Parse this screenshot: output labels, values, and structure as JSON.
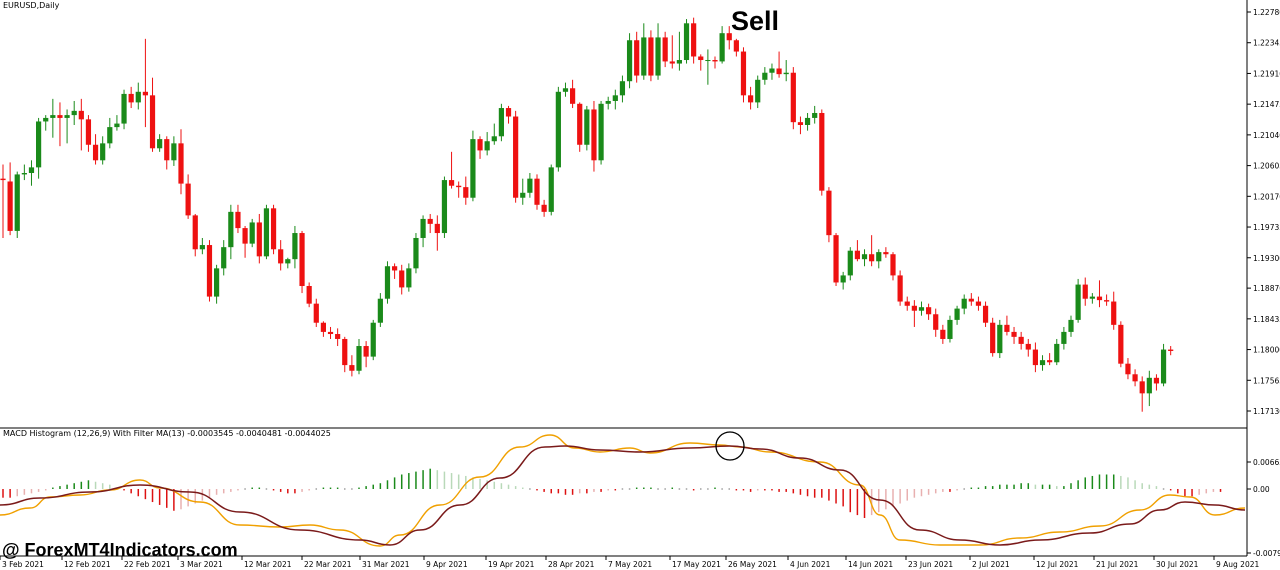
{
  "main_chart": {
    "title": "EURUSD,Daily",
    "annotation": "Sell",
    "price_labels": [
      "1.22780",
      "1.22345",
      "1.21910",
      "1.21475",
      "1.21040",
      "1.20605",
      "1.20170",
      "1.19735",
      "1.19300",
      "1.18870",
      "1.18435",
      "1.18000",
      "1.17565",
      "1.17130"
    ],
    "ohlc": [
      {
        "o": 1.2042,
        "h": 1.2062,
        "l": 1.1958,
        "c": 1.204
      },
      {
        "o": 1.2038,
        "h": 1.2065,
        "l": 1.1962,
        "c": 1.1968
      },
      {
        "o": 1.1968,
        "h": 1.2052,
        "l": 1.1958,
        "c": 1.2048
      },
      {
        "o": 1.2048,
        "h": 1.2062,
        "l": 1.204,
        "c": 1.205
      },
      {
        "o": 1.205,
        "h": 1.2068,
        "l": 1.2032,
        "c": 1.2058
      },
      {
        "o": 1.2058,
        "h": 1.2128,
        "l": 1.2042,
        "c": 1.2123
      },
      {
        "o": 1.2123,
        "h": 1.2132,
        "l": 1.211,
        "c": 1.2128
      },
      {
        "o": 1.2128,
        "h": 1.2155,
        "l": 1.21,
        "c": 1.2132
      },
      {
        "o": 1.2132,
        "h": 1.215,
        "l": 1.2088,
        "c": 1.2128
      },
      {
        "o": 1.2128,
        "h": 1.214,
        "l": 1.2092,
        "c": 1.2132
      },
      {
        "o": 1.2132,
        "h": 1.2152,
        "l": 1.2118,
        "c": 1.2138
      },
      {
        "o": 1.2138,
        "h": 1.2155,
        "l": 1.2082,
        "c": 1.2126
      },
      {
        "o": 1.2126,
        "h": 1.2132,
        "l": 1.208,
        "c": 1.209
      },
      {
        "o": 1.209,
        "h": 1.2105,
        "l": 1.2062,
        "c": 1.2068
      },
      {
        "o": 1.2068,
        "h": 1.2102,
        "l": 1.2062,
        "c": 1.2092
      },
      {
        "o": 1.2092,
        "h": 1.2128,
        "l": 1.2085,
        "c": 1.2115
      },
      {
        "o": 1.2115,
        "h": 1.2132,
        "l": 1.211,
        "c": 1.212
      },
      {
        "o": 1.212,
        "h": 1.2168,
        "l": 1.2112,
        "c": 1.2162
      },
      {
        "o": 1.2162,
        "h": 1.2172,
        "l": 1.2142,
        "c": 1.215
      },
      {
        "o": 1.215,
        "h": 1.2178,
        "l": 1.214,
        "c": 1.2165
      },
      {
        "o": 1.2165,
        "h": 1.224,
        "l": 1.2115,
        "c": 1.216
      },
      {
        "o": 1.216,
        "h": 1.2185,
        "l": 1.208,
        "c": 1.2085
      },
      {
        "o": 1.2085,
        "h": 1.2105,
        "l": 1.208,
        "c": 1.2098
      },
      {
        "o": 1.2098,
        "h": 1.2102,
        "l": 1.2055,
        "c": 1.2068
      },
      {
        "o": 1.2068,
        "h": 1.2102,
        "l": 1.206,
        "c": 1.2092
      },
      {
        "o": 1.2092,
        "h": 1.2112,
        "l": 1.202,
        "c": 1.2035
      },
      {
        "o": 1.2035,
        "h": 1.2048,
        "l": 1.1985,
        "c": 1.199
      },
      {
        "o": 1.199,
        "h": 1.1992,
        "l": 1.1932,
        "c": 1.1942
      },
      {
        "o": 1.1942,
        "h": 1.1958,
        "l": 1.1935,
        "c": 1.1948
      },
      {
        "o": 1.1948,
        "h": 1.1955,
        "l": 1.1868,
        "c": 1.1875
      },
      {
        "o": 1.1875,
        "h": 1.192,
        "l": 1.1865,
        "c": 1.1915
      },
      {
        "o": 1.1915,
        "h": 1.1955,
        "l": 1.1905,
        "c": 1.1945
      },
      {
        "o": 1.1945,
        "h": 1.2005,
        "l": 1.1928,
        "c": 1.1995
      },
      {
        "o": 1.1995,
        "h": 1.2005,
        "l": 1.1965,
        "c": 1.1972
      },
      {
        "o": 1.1972,
        "h": 1.1975,
        "l": 1.193,
        "c": 1.195
      },
      {
        "o": 1.195,
        "h": 1.1985,
        "l": 1.1945,
        "c": 1.198
      },
      {
        "o": 1.198,
        "h": 1.1992,
        "l": 1.1922,
        "c": 1.1932
      },
      {
        "o": 1.1932,
        "h": 1.2005,
        "l": 1.1928,
        "c": 1.2
      },
      {
        "o": 1.2,
        "h": 1.2005,
        "l": 1.1935,
        "c": 1.1942
      },
      {
        "o": 1.1942,
        "h": 1.1955,
        "l": 1.1912,
        "c": 1.1922
      },
      {
        "o": 1.1922,
        "h": 1.193,
        "l": 1.1915,
        "c": 1.1928
      },
      {
        "o": 1.1928,
        "h": 1.1975,
        "l": 1.1915,
        "c": 1.1965
      },
      {
        "o": 1.1965,
        "h": 1.1968,
        "l": 1.188,
        "c": 1.189
      },
      {
        "o": 1.189,
        "h": 1.1895,
        "l": 1.186,
        "c": 1.1865
      },
      {
        "o": 1.1865,
        "h": 1.1872,
        "l": 1.1832,
        "c": 1.1838
      },
      {
        "o": 1.1838,
        "h": 1.184,
        "l": 1.1818,
        "c": 1.1825
      },
      {
        "o": 1.1825,
        "h": 1.1832,
        "l": 1.1815,
        "c": 1.1822
      },
      {
        "o": 1.1822,
        "h": 1.183,
        "l": 1.1805,
        "c": 1.1815
      },
      {
        "o": 1.1815,
        "h": 1.1818,
        "l": 1.1768,
        "c": 1.1778
      },
      {
        "o": 1.1778,
        "h": 1.1792,
        "l": 1.1762,
        "c": 1.177
      },
      {
        "o": 1.177,
        "h": 1.1815,
        "l": 1.1765,
        "c": 1.1805
      },
      {
        "o": 1.1805,
        "h": 1.1812,
        "l": 1.1775,
        "c": 1.179
      },
      {
        "o": 1.179,
        "h": 1.1842,
        "l": 1.1785,
        "c": 1.1838
      },
      {
        "o": 1.1838,
        "h": 1.188,
        "l": 1.1832,
        "c": 1.1872
      },
      {
        "o": 1.1872,
        "h": 1.1925,
        "l": 1.1865,
        "c": 1.1918
      },
      {
        "o": 1.1918,
        "h": 1.1922,
        "l": 1.19,
        "c": 1.1912
      },
      {
        "o": 1.1912,
        "h": 1.192,
        "l": 1.1878,
        "c": 1.1888
      },
      {
        "o": 1.1888,
        "h": 1.1922,
        "l": 1.1882,
        "c": 1.1915
      },
      {
        "o": 1.1915,
        "h": 1.1965,
        "l": 1.1908,
        "c": 1.1958
      },
      {
        "o": 1.1958,
        "h": 1.199,
        "l": 1.1945,
        "c": 1.1985
      },
      {
        "o": 1.1985,
        "h": 1.1992,
        "l": 1.1965,
        "c": 1.1978
      },
      {
        "o": 1.1978,
        "h": 1.199,
        "l": 1.194,
        "c": 1.1965
      },
      {
        "o": 1.1965,
        "h": 1.2045,
        "l": 1.1958,
        "c": 1.204
      },
      {
        "o": 1.204,
        "h": 1.208,
        "l": 1.2028,
        "c": 1.2032
      },
      {
        "o": 1.2032,
        "h": 1.2038,
        "l": 1.2015,
        "c": 1.203
      },
      {
        "o": 1.203,
        "h": 1.2045,
        "l": 1.2005,
        "c": 1.2015
      },
      {
        "o": 1.2015,
        "h": 1.211,
        "l": 1.201,
        "c": 1.2098
      },
      {
        "o": 1.2098,
        "h": 1.2102,
        "l": 1.207,
        "c": 1.2082
      },
      {
        "o": 1.2082,
        "h": 1.2108,
        "l": 1.2075,
        "c": 1.2095
      },
      {
        "o": 1.2095,
        "h": 1.212,
        "l": 1.209,
        "c": 1.2102
      },
      {
        "o": 1.2102,
        "h": 1.2148,
        "l": 1.2095,
        "c": 1.2142
      },
      {
        "o": 1.2142,
        "h": 1.2145,
        "l": 1.212,
        "c": 1.213
      },
      {
        "o": 1.213,
        "h": 1.2138,
        "l": 1.2008,
        "c": 1.2015
      },
      {
        "o": 1.2015,
        "h": 1.2042,
        "l": 1.2005,
        "c": 1.2022
      },
      {
        "o": 1.2022,
        "h": 1.205,
        "l": 1.2015,
        "c": 1.2042
      },
      {
        "o": 1.2042,
        "h": 1.2048,
        "l": 1.1998,
        "c": 1.2005
      },
      {
        "o": 1.2005,
        "h": 1.2012,
        "l": 1.1988,
        "c": 1.1995
      },
      {
        "o": 1.1995,
        "h": 1.2062,
        "l": 1.199,
        "c": 1.2058
      },
      {
        "o": 1.2058,
        "h": 1.2172,
        "l": 1.2052,
        "c": 1.2165
      },
      {
        "o": 1.2165,
        "h": 1.2178,
        "l": 1.2158,
        "c": 1.217
      },
      {
        "o": 1.217,
        "h": 1.2182,
        "l": 1.2142,
        "c": 1.2148
      },
      {
        "o": 1.2148,
        "h": 1.215,
        "l": 1.208,
        "c": 1.209
      },
      {
        "o": 1.209,
        "h": 1.2145,
        "l": 1.2082,
        "c": 1.214
      },
      {
        "o": 1.214,
        "h": 1.2152,
        "l": 1.2052,
        "c": 1.2068
      },
      {
        "o": 1.2068,
        "h": 1.2152,
        "l": 1.2062,
        "c": 1.2148
      },
      {
        "o": 1.2148,
        "h": 1.2158,
        "l": 1.214,
        "c": 1.2152
      },
      {
        "o": 1.2152,
        "h": 1.2168,
        "l": 1.214,
        "c": 1.216
      },
      {
        "o": 1.216,
        "h": 1.2188,
        "l": 1.215,
        "c": 1.218
      },
      {
        "o": 1.218,
        "h": 1.2248,
        "l": 1.217,
        "c": 1.2238
      },
      {
        "o": 1.2238,
        "h": 1.225,
        "l": 1.2178,
        "c": 1.2188
      },
      {
        "o": 1.2188,
        "h": 1.2262,
        "l": 1.2182,
        "c": 1.2242
      },
      {
        "o": 1.2242,
        "h": 1.2252,
        "l": 1.218,
        "c": 1.2188
      },
      {
        "o": 1.2188,
        "h": 1.2262,
        "l": 1.2182,
        "c": 1.2242
      },
      {
        "o": 1.2242,
        "h": 1.225,
        "l": 1.22,
        "c": 1.2208
      },
      {
        "o": 1.2208,
        "h": 1.2245,
        "l": 1.2198,
        "c": 1.2205
      },
      {
        "o": 1.2205,
        "h": 1.225,
        "l": 1.2195,
        "c": 1.221
      },
      {
        "o": 1.221,
        "h": 1.2268,
        "l": 1.2205,
        "c": 1.2262
      },
      {
        "o": 1.2262,
        "h": 1.227,
        "l": 1.2205,
        "c": 1.2215
      },
      {
        "o": 1.2215,
        "h": 1.2218,
        "l": 1.2195,
        "c": 1.221
      },
      {
        "o": 1.221,
        "h": 1.2225,
        "l": 1.2175,
        "c": 1.221
      },
      {
        "o": 1.221,
        "h": 1.2215,
        "l": 1.2198,
        "c": 1.2208
      },
      {
        "o": 1.2208,
        "h": 1.2258,
        "l": 1.2205,
        "c": 1.2248
      },
      {
        "o": 1.2248,
        "h": 1.2258,
        "l": 1.2225,
        "c": 1.2238
      },
      {
        "o": 1.2238,
        "h": 1.224,
        "l": 1.2215,
        "c": 1.2222
      },
      {
        "o": 1.2222,
        "h": 1.2228,
        "l": 1.215,
        "c": 1.216
      },
      {
        "o": 1.216,
        "h": 1.2172,
        "l": 1.214,
        "c": 1.215
      },
      {
        "o": 1.215,
        "h": 1.2188,
        "l": 1.2142,
        "c": 1.2182
      },
      {
        "o": 1.2182,
        "h": 1.22,
        "l": 1.2175,
        "c": 1.2192
      },
      {
        "o": 1.2192,
        "h": 1.2205,
        "l": 1.2182,
        "c": 1.2198
      },
      {
        "o": 1.2198,
        "h": 1.2222,
        "l": 1.2185,
        "c": 1.219
      },
      {
        "o": 1.219,
        "h": 1.221,
        "l": 1.218,
        "c": 1.2192
      },
      {
        "o": 1.2192,
        "h": 1.22,
        "l": 1.2112,
        "c": 1.2122
      },
      {
        "o": 1.2122,
        "h": 1.213,
        "l": 1.2105,
        "c": 1.2118
      },
      {
        "o": 1.2118,
        "h": 1.2135,
        "l": 1.211,
        "c": 1.2128
      },
      {
        "o": 1.2128,
        "h": 1.2145,
        "l": 1.212,
        "c": 1.2135
      },
      {
        "o": 1.2135,
        "h": 1.214,
        "l": 1.2018,
        "c": 1.2025
      },
      {
        "o": 1.2025,
        "h": 1.203,
        "l": 1.1952,
        "c": 1.1962
      },
      {
        "o": 1.1962,
        "h": 1.1965,
        "l": 1.189,
        "c": 1.1895
      },
      {
        "o": 1.1895,
        "h": 1.191,
        "l": 1.1885,
        "c": 1.1905
      },
      {
        "o": 1.1905,
        "h": 1.1945,
        "l": 1.1898,
        "c": 1.194
      },
      {
        "o": 1.194,
        "h": 1.1955,
        "l": 1.1925,
        "c": 1.1928
      },
      {
        "o": 1.1928,
        "h": 1.1942,
        "l": 1.1918,
        "c": 1.1935
      },
      {
        "o": 1.1935,
        "h": 1.1962,
        "l": 1.1918,
        "c": 1.1925
      },
      {
        "o": 1.1925,
        "h": 1.1942,
        "l": 1.1915,
        "c": 1.1938
      },
      {
        "o": 1.1938,
        "h": 1.1945,
        "l": 1.193,
        "c": 1.1935
      },
      {
        "o": 1.1935,
        "h": 1.1938,
        "l": 1.1898,
        "c": 1.1905
      },
      {
        "o": 1.1905,
        "h": 1.1912,
        "l": 1.1862,
        "c": 1.1868
      },
      {
        "o": 1.1868,
        "h": 1.1875,
        "l": 1.1855,
        "c": 1.1862
      },
      {
        "o": 1.1862,
        "h": 1.187,
        "l": 1.1832,
        "c": 1.1855
      },
      {
        "o": 1.1855,
        "h": 1.1868,
        "l": 1.1848,
        "c": 1.186
      },
      {
        "o": 1.186,
        "h": 1.1865,
        "l": 1.1842,
        "c": 1.185
      },
      {
        "o": 1.185,
        "h": 1.1858,
        "l": 1.1818,
        "c": 1.1828
      },
      {
        "o": 1.1828,
        "h": 1.1835,
        "l": 1.1808,
        "c": 1.1815
      },
      {
        "o": 1.1815,
        "h": 1.1848,
        "l": 1.181,
        "c": 1.1842
      },
      {
        "o": 1.1842,
        "h": 1.1862,
        "l": 1.1835,
        "c": 1.1858
      },
      {
        "o": 1.1858,
        "h": 1.1878,
        "l": 1.185,
        "c": 1.1872
      },
      {
        "o": 1.1872,
        "h": 1.188,
        "l": 1.1862,
        "c": 1.1868
      },
      {
        "o": 1.1868,
        "h": 1.1875,
        "l": 1.1855,
        "c": 1.1862
      },
      {
        "o": 1.1862,
        "h": 1.1868,
        "l": 1.1832,
        "c": 1.1838
      },
      {
        "o": 1.1838,
        "h": 1.1845,
        "l": 1.179,
        "c": 1.1795
      },
      {
        "o": 1.1795,
        "h": 1.1842,
        "l": 1.1788,
        "c": 1.1835
      },
      {
        "o": 1.1835,
        "h": 1.1848,
        "l": 1.182,
        "c": 1.1825
      },
      {
        "o": 1.1825,
        "h": 1.1832,
        "l": 1.1808,
        "c": 1.1818
      },
      {
        "o": 1.1818,
        "h": 1.1825,
        "l": 1.18,
        "c": 1.1808
      },
      {
        "o": 1.1808,
        "h": 1.1815,
        "l": 1.179,
        "c": 1.18
      },
      {
        "o": 1.18,
        "h": 1.181,
        "l": 1.1768,
        "c": 1.1778
      },
      {
        "o": 1.1778,
        "h": 1.1792,
        "l": 1.177,
        "c": 1.1785
      },
      {
        "o": 1.1785,
        "h": 1.1795,
        "l": 1.1778,
        "c": 1.1782
      },
      {
        "o": 1.1782,
        "h": 1.1815,
        "l": 1.1778,
        "c": 1.1808
      },
      {
        "o": 1.1808,
        "h": 1.1832,
        "l": 1.18,
        "c": 1.1825
      },
      {
        "o": 1.1825,
        "h": 1.1848,
        "l": 1.1818,
        "c": 1.1842
      },
      {
        "o": 1.1842,
        "h": 1.19,
        "l": 1.1838,
        "c": 1.1892
      },
      {
        "o": 1.1892,
        "h": 1.1902,
        "l": 1.1862,
        "c": 1.1872
      },
      {
        "o": 1.1872,
        "h": 1.188,
        "l": 1.1865,
        "c": 1.1875
      },
      {
        "o": 1.1875,
        "h": 1.1898,
        "l": 1.186,
        "c": 1.187
      },
      {
        "o": 1.187,
        "h": 1.1878,
        "l": 1.1862,
        "c": 1.1868
      },
      {
        "o": 1.1868,
        "h": 1.1882,
        "l": 1.1828,
        "c": 1.1835
      },
      {
        "o": 1.1835,
        "h": 1.184,
        "l": 1.1775,
        "c": 1.178
      },
      {
        "o": 1.178,
        "h": 1.1788,
        "l": 1.1758,
        "c": 1.1765
      },
      {
        "o": 1.1765,
        "h": 1.1772,
        "l": 1.1748,
        "c": 1.1755
      },
      {
        "o": 1.1755,
        "h": 1.1762,
        "l": 1.1712,
        "c": 1.1738
      },
      {
        "o": 1.1738,
        "h": 1.177,
        "l": 1.172,
        "c": 1.176
      },
      {
        "o": 1.176,
        "h": 1.1765,
        "l": 1.1742,
        "c": 1.1752
      },
      {
        "o": 1.1752,
        "h": 1.1808,
        "l": 1.1748,
        "c": 1.18
      },
      {
        "o": 1.18,
        "h": 1.1805,
        "l": 1.1792,
        "c": 1.1798
      }
    ]
  },
  "indicator": {
    "title": "MACD Histogram (12,26,9) With Filter MA(13) -0.0003545 -0.0040481 -0.0044025",
    "labels": [
      "0.006635",
      "0.00",
      "-0.007920"
    ],
    "histogram": [
      -6,
      -6,
      -5,
      -4,
      -3,
      -2,
      -1,
      1,
      2,
      3,
      4,
      5,
      6,
      5,
      4,
      3,
      1,
      -1,
      -3,
      -5,
      -7,
      -9,
      -11,
      -13,
      -15,
      -14,
      -12,
      -10,
      -8,
      -6,
      -4,
      -3,
      -2,
      -1,
      0,
      1,
      1,
      0,
      -1,
      -2,
      -3,
      -3,
      -2,
      -1,
      0,
      1,
      1,
      1,
      0,
      0,
      1,
      2,
      3,
      4,
      6,
      8,
      10,
      11,
      12,
      13,
      14,
      13,
      12,
      11,
      10,
      9,
      8,
      7,
      6,
      5,
      4,
      3,
      2,
      1,
      0,
      -1,
      -2,
      -3,
      -3,
      -4,
      -4,
      -3,
      -3,
      -2,
      -2,
      -1,
      -1,
      0,
      0,
      1,
      1,
      1,
      0,
      0,
      1,
      0,
      0,
      -1,
      0,
      0,
      1,
      0,
      0,
      -1,
      -1,
      -2,
      -1,
      -1,
      -1,
      -2,
      -2,
      -3,
      -4,
      -5,
      -6,
      -6,
      -8,
      -10,
      -12,
      -16,
      -18,
      -20,
      -18,
      -16,
      -14,
      -12,
      -10,
      -8,
      -6,
      -5,
      -4,
      -3,
      -2,
      -2,
      -1,
      0,
      1,
      1,
      2,
      2,
      3,
      3,
      3,
      4,
      4,
      3,
      3,
      3,
      2,
      2,
      4,
      6,
      8,
      9,
      10,
      10,
      10,
      9,
      8,
      6,
      4,
      3,
      2,
      0,
      -1,
      -3,
      -5,
      -5,
      -4,
      -3,
      -2,
      -2
    ],
    "macd_line_color": "#7a1a1a",
    "signal_line_color": "#f0a000"
  },
  "x_labels": [
    "3 Feb 2021",
    "12 Feb 2021",
    "22 Feb 2021",
    "3 Mar 2021",
    "12 Mar 2021",
    "22 Mar 2021",
    "31 Mar 2021",
    "9 Apr 2021",
    "19 Apr 2021",
    "28 Apr 2021",
    "7 May 2021",
    "17 May 2021",
    "26 May 2021",
    "4 Jun 2021",
    "14 Jun 2021",
    "23 Jun 2021",
    "2 Jul 2021",
    "12 Jul 2021",
    "21 Jul 2021",
    "30 Jul 2021",
    "9 Aug 2021"
  ],
  "watermark": "@ ForexMT4Indicators.com",
  "colors": {
    "bull": "#1a8a1a",
    "bear": "#ee1111",
    "hist_pos": "#1a8a1a",
    "hist_neg": "#dd1111"
  }
}
